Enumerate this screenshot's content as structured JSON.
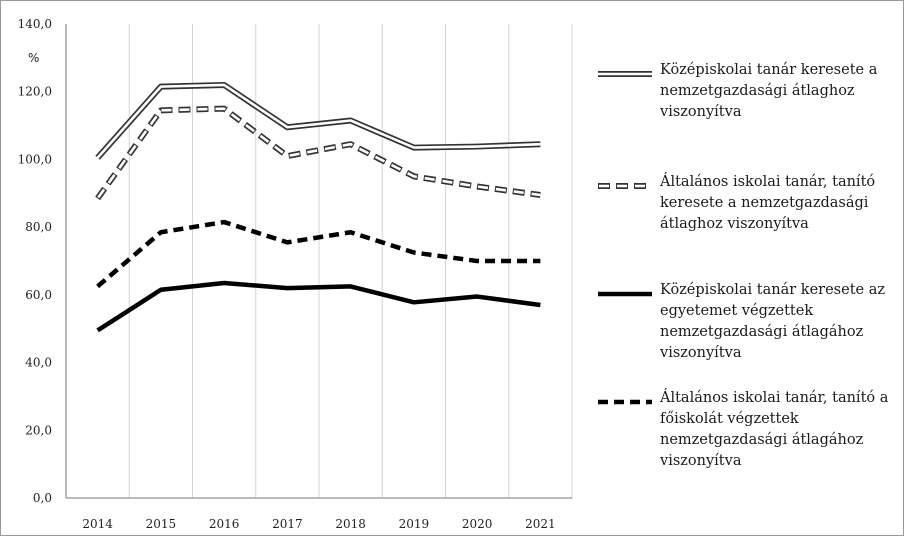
{
  "chart_data": {
    "type": "line",
    "ylabel": "%",
    "ylim": [
      0,
      140
    ],
    "y_ticks": [
      "0,0",
      "20,0",
      "40,0",
      "60,0",
      "80,0",
      "100,0",
      "120,0",
      "140,0"
    ],
    "categories": [
      "2014",
      "2015",
      "2016",
      "2017",
      "2018",
      "2019",
      "2020",
      "2021"
    ],
    "grid": "vertical",
    "legend_position": "right",
    "series": [
      {
        "name": "Középiskolai tanár keresete a nemzetgazdasági átlaghoz viszonyítva",
        "style": "double-line",
        "values": [
          100.5,
          121.5,
          122,
          109.5,
          111.5,
          103.5,
          103.8,
          104.5
        ]
      },
      {
        "name": "Általános iskolai tanár, tanító keresete a nemzetgazdasági átlaghoz viszonyítva",
        "style": "hollow-dashed",
        "values": [
          88.5,
          114.5,
          115,
          101,
          104.5,
          95,
          92,
          89.5
        ]
      },
      {
        "name": "Középiskolai tanár keresete az egyetemet végzettek nemzetgazdasági átlagához viszonyítva",
        "style": "solid",
        "values": [
          49.5,
          61.5,
          63.5,
          62,
          62.5,
          57.8,
          59.5,
          57
        ]
      },
      {
        "name": "Általános iskolai tanár, tanító a főiskolát végzettek nemzetgazdasági átlagához viszonyítva",
        "style": "dashed",
        "values": [
          62.5,
          78.5,
          81.5,
          75.5,
          78.5,
          72.5,
          70,
          70
        ]
      }
    ]
  }
}
